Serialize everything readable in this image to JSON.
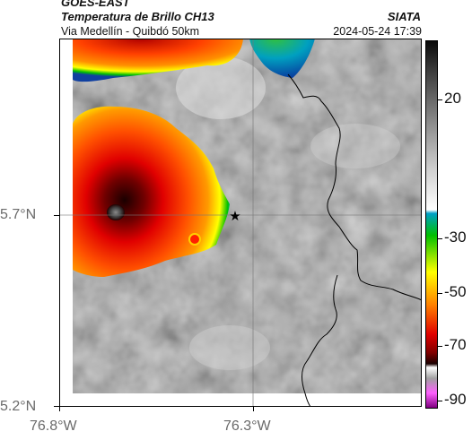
{
  "header": {
    "source": "GOES-EAST",
    "title": "Temperatura de Brillo CH13",
    "subtitle": "Via Medellín - Quibdó 50km",
    "organization": "SIATA",
    "timestamp": "2024-05-24 17:39"
  },
  "map": {
    "lat_labels": [
      "5.7°N",
      "5.2°N"
    ],
    "lon_labels": [
      "76.8°W",
      "76.3°W"
    ],
    "marker": "star",
    "colors": {
      "background_gray": "#8a8a8a",
      "boundary": "#000000",
      "grid": "#777777"
    }
  },
  "colorbar": {
    "tick_labels": [
      "20",
      "-30",
      "-50",
      "-70",
      "-90"
    ],
    "stops": [
      "#0a0a0a",
      "#3c3c3c",
      "#8a8a8a",
      "#cfcfcf",
      "#ffffff",
      "#00a0c8",
      "#00c000",
      "#ffff00",
      "#ff8000",
      "#e00000",
      "#800000",
      "#1a0000",
      "#ffffff",
      "#a0a0a0",
      "#ff60ff",
      "#800080"
    ]
  }
}
